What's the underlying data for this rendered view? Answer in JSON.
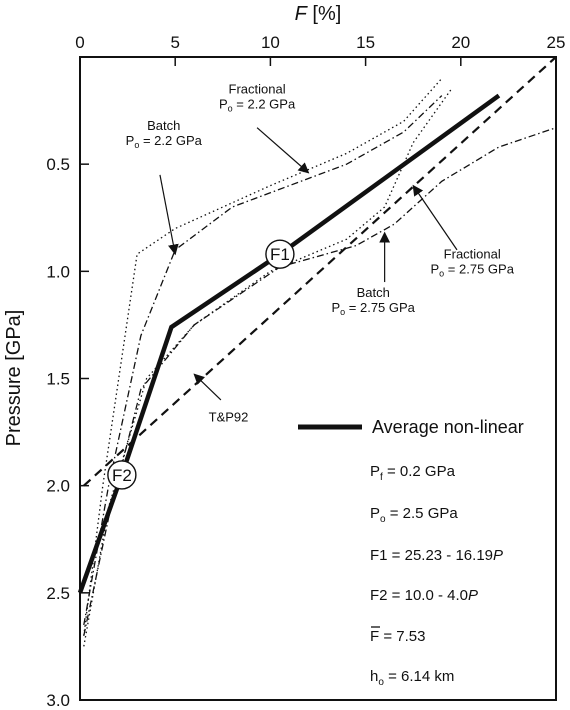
{
  "chart_data": {
    "type": "line",
    "xlabel_italic": "F",
    "xlabel_unit": " [%]",
    "ylabel": "Pressure [GPa]",
    "xlim": [
      0,
      25
    ],
    "ylim": [
      3.0,
      0.0
    ],
    "x_ticks": [
      0,
      5,
      10,
      15,
      20,
      25
    ],
    "y_ticks": [
      0.5,
      1.0,
      1.5,
      2.0,
      2.5,
      3.0
    ],
    "x_axis_position": "top",
    "y_axis_inverted": true,
    "grid": false,
    "series": [
      {
        "key": "avg",
        "name": "Average non-linear",
        "style": "solid-thick",
        "points": [
          [
            0.0,
            2.5
          ],
          [
            2.2,
            1.95
          ],
          [
            4.8,
            1.26
          ],
          [
            10.5,
            0.92
          ],
          [
            22,
            0.18
          ]
        ]
      },
      {
        "key": "tp92",
        "name": "T&P92",
        "style": "dashed",
        "points": [
          [
            0.2,
            2.0
          ],
          [
            25,
            0.0
          ]
        ]
      },
      {
        "key": "frac22",
        "name": "Fractional 2.2 GPa",
        "style": "dotted",
        "points": [
          [
            0.2,
            2.7
          ],
          [
            1.2,
            2.0
          ],
          [
            2.2,
            1.4
          ],
          [
            3.0,
            0.92
          ],
          [
            5.0,
            0.8
          ],
          [
            10.0,
            0.6
          ],
          [
            14.0,
            0.45
          ],
          [
            17.0,
            0.3
          ],
          [
            19.0,
            0.1
          ]
        ]
      },
      {
        "key": "batch22",
        "name": "Batch 2.2 GPa",
        "style": "dash-dot",
        "points": [
          [
            0.2,
            2.65
          ],
          [
            1.5,
            2.0
          ],
          [
            3.2,
            1.3
          ],
          [
            5.0,
            0.9
          ],
          [
            8.0,
            0.7
          ],
          [
            14.0,
            0.5
          ],
          [
            17.0,
            0.35
          ],
          [
            19.0,
            0.18
          ]
        ]
      },
      {
        "key": "frac275",
        "name": "Fractional 2.75 GPa",
        "style": "dotted",
        "points": [
          [
            0.2,
            2.75
          ],
          [
            1.5,
            2.1
          ],
          [
            3.5,
            1.5
          ],
          [
            6.0,
            1.25
          ],
          [
            10.0,
            1.0
          ],
          [
            14.0,
            0.85
          ],
          [
            16.0,
            0.7
          ],
          [
            17.5,
            0.4
          ],
          [
            19.5,
            0.15
          ]
        ]
      },
      {
        "key": "batch275",
        "name": "Batch 2.75 GPa",
        "style": "dash-dot",
        "points": [
          [
            0.2,
            2.7
          ],
          [
            1.5,
            2.15
          ],
          [
            3.2,
            1.55
          ],
          [
            6.0,
            1.25
          ],
          [
            10.5,
            0.98
          ],
          [
            14.5,
            0.88
          ],
          [
            16.5,
            0.78
          ],
          [
            19.0,
            0.58
          ],
          [
            22.0,
            0.42
          ],
          [
            25.0,
            0.33
          ]
        ]
      }
    ],
    "annotations": [
      {
        "key": "frac22",
        "line1": "Fractional",
        "line2": "P",
        "sub": "o",
        "line2b": " = 2.2 GPa",
        "label_at": [
          9.3,
          0.17
        ],
        "arrow_from": [
          9.3,
          0.33
        ],
        "arrow_to": [
          12.0,
          0.54
        ]
      },
      {
        "key": "batch22",
        "line1": "Batch",
        "line2": "P",
        "sub": "o",
        "line2b": " = 2.2 GPa",
        "label_at": [
          4.4,
          0.34
        ],
        "arrow_from": [
          4.2,
          0.55
        ],
        "arrow_to": [
          5.0,
          0.92
        ]
      },
      {
        "key": "frac275",
        "line1": "Fractional",
        "line2": "P",
        "sub": "o",
        "line2b": " = 2.75 GPa",
        "label_at": [
          20.6,
          0.94
        ],
        "arrow_from": [
          19.8,
          0.9
        ],
        "arrow_to": [
          17.5,
          0.6
        ]
      },
      {
        "key": "batch275",
        "line1": "Batch",
        "line2": "P",
        "sub": "o",
        "line2b": " = 2.75 GPa",
        "label_at": [
          15.4,
          1.12
        ],
        "arrow_from": [
          16.0,
          1.05
        ],
        "arrow_to": [
          16.0,
          0.82
        ]
      },
      {
        "key": "tp92",
        "line1": "T&P92",
        "label_at": [
          7.8,
          1.7
        ],
        "arrow_from": [
          7.4,
          1.6
        ],
        "arrow_to": [
          6.0,
          1.48
        ]
      }
    ],
    "markers": [
      {
        "label": "F1",
        "at": [
          10.5,
          0.92
        ]
      },
      {
        "label": "F2",
        "at": [
          2.2,
          1.95
        ]
      }
    ],
    "legend": {
      "label": "Average non-linear",
      "placement": "lower-right"
    },
    "parameters": {
      "pf": {
        "main": "P",
        "sub": "f",
        "rest": " = 0.2 GPa"
      },
      "po": {
        "main": "P",
        "sub": "o",
        "rest": " = 2.5 GPa"
      },
      "f1": {
        "main": "F1 = 25.23 - 16.19",
        "italic": "P"
      },
      "f2": {
        "main": "F2 = 10.0 - 4.0",
        "italic": "P"
      },
      "fbar": {
        "main": "F",
        "rest": " = 7.53"
      },
      "ho": {
        "main": "h",
        "sub": "o",
        "rest": " = 6.14 km"
      }
    }
  }
}
